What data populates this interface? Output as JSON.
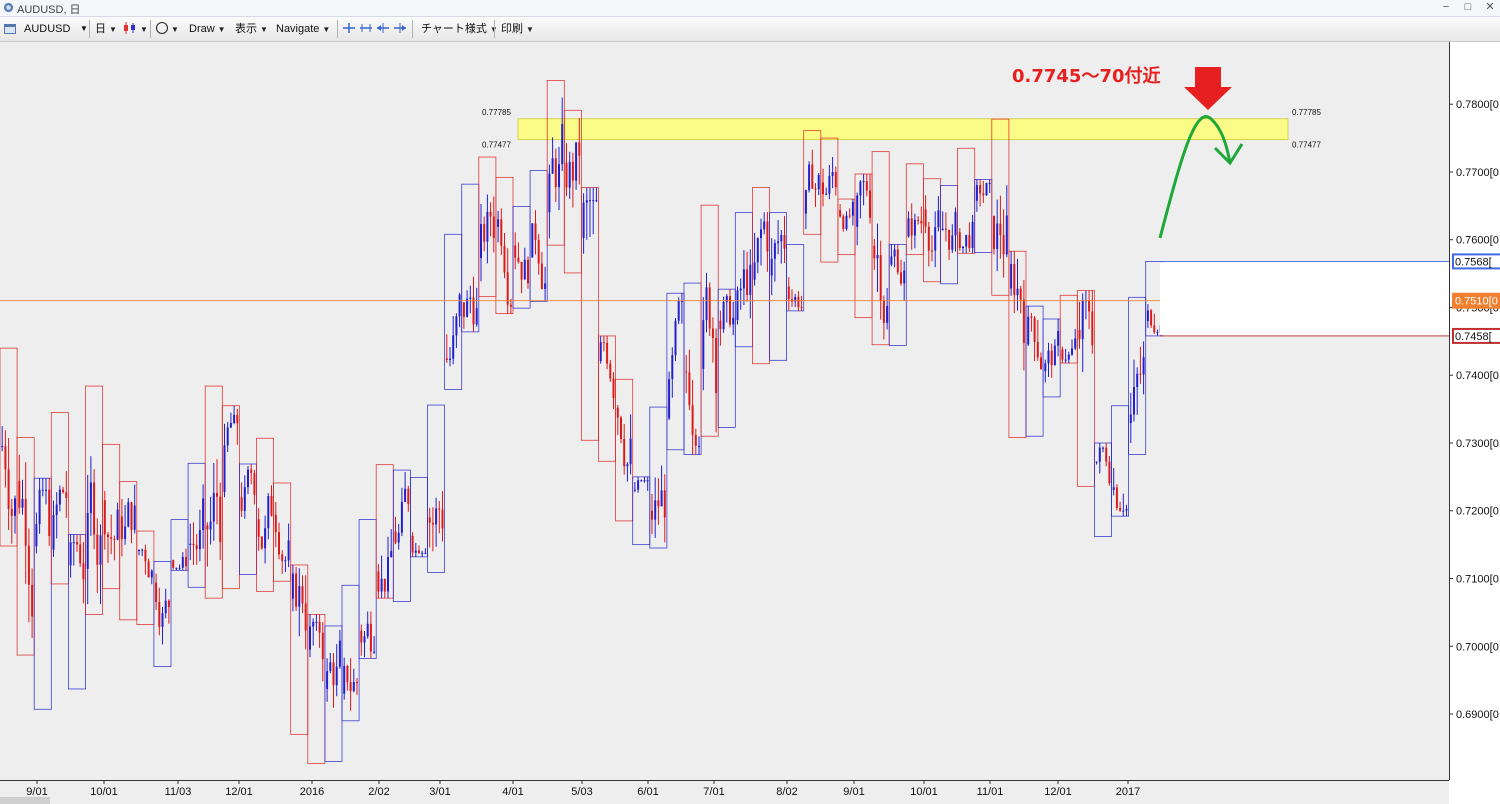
{
  "window": {
    "title": "AUDUSD, 日",
    "minimize": "−",
    "maximize": "□",
    "close": "✕"
  },
  "toolbar": {
    "symbol": "AUDUSD",
    "timeframe": "日",
    "draw_label": "Draw",
    "display_label": "表示",
    "navigate_label": "Navigate",
    "chart_style_label": "チャート様式",
    "print_label": "印刷"
  },
  "colors": {
    "bull": "#2020cc",
    "bear": "#dd1a1a",
    "zone": "#ffff66",
    "annotation": "#e62020",
    "arrow_curve": "#1ea838",
    "current_line": "#f08030",
    "high_line": "#4169e1",
    "low_line": "#c03030",
    "chart_bg": "#eeeeee"
  },
  "annotation": {
    "text": "0.7745〜70付近"
  },
  "zone": {
    "upper_label": "0.77785",
    "lower_label": "0.77477"
  },
  "price_labels": {
    "high": "0.7568[",
    "current": "0.7510[0",
    "low": "0.7458["
  },
  "chart_data": {
    "type": "candlestick",
    "symbol": "AUDUSD",
    "timeframe": "日",
    "y_axis": {
      "ylim": [
        0.681,
        0.788
      ],
      "ticks": [
        "0.7800[0",
        "0.7700[0",
        "0.7600[0",
        "0.7500[0",
        "0.7400[0",
        "0.7300[0",
        "0.7200[0",
        "0.7100[0",
        "0.7000[0",
        "0.6900[0"
      ]
    },
    "x_axis": {
      "ticks": [
        "9/01",
        "10/01",
        "11/03",
        "12/01",
        "2016",
        "2/02",
        "3/01",
        "4/01",
        "5/03",
        "6/01",
        "7/01",
        "8/02",
        "9/01",
        "10/01",
        "11/01",
        "12/01",
        "2017"
      ]
    },
    "horizontal_lines": {
      "high": 0.7568,
      "current": 0.751,
      "low": 0.7458
    },
    "zone": {
      "upper": 0.77785,
      "lower": 0.77477
    },
    "weekly_boxes": [
      [
        0.744,
        0.7148
      ],
      [
        0.7308,
        0.6987
      ],
      [
        0.7248,
        0.6907
      ],
      [
        0.7345,
        0.7092
      ],
      [
        0.7165,
        0.6937
      ],
      [
        0.7384,
        0.7047
      ],
      [
        0.7298,
        0.7085
      ],
      [
        0.7243,
        0.7039
      ],
      [
        0.717,
        0.7032
      ],
      [
        0.7125,
        0.697
      ],
      [
        0.7187,
        0.7112
      ],
      [
        0.727,
        0.7087
      ],
      [
        0.7384,
        0.7071
      ],
      [
        0.7355,
        0.7085
      ],
      [
        0.7269,
        0.7106
      ],
      [
        0.7307,
        0.7081
      ],
      [
        0.7241,
        0.7096
      ],
      [
        0.712,
        0.687
      ],
      [
        0.7047,
        0.6827
      ],
      [
        0.703,
        0.683
      ],
      [
        0.709,
        0.689
      ],
      [
        0.7187,
        0.6982
      ],
      [
        0.7268,
        0.7071
      ],
      [
        0.726,
        0.7066
      ],
      [
        0.7249,
        0.7132
      ],
      [
        0.7356,
        0.7109
      ],
      [
        0.7608,
        0.7379
      ],
      [
        0.7682,
        0.7464
      ],
      [
        0.7722,
        0.7516
      ],
      [
        0.7692,
        0.7491
      ],
      [
        0.7649,
        0.7499
      ],
      [
        0.7702,
        0.7509
      ],
      [
        0.7835,
        0.7592
      ],
      [
        0.7791,
        0.7551
      ],
      [
        0.7677,
        0.7304
      ],
      [
        0.7458,
        0.7273
      ],
      [
        0.7394,
        0.7185
      ],
      [
        0.725,
        0.715
      ],
      [
        0.7353,
        0.7145
      ],
      [
        0.7521,
        0.729
      ],
      [
        0.7536,
        0.7283
      ],
      [
        0.7651,
        0.731
      ],
      [
        0.7527,
        0.7323
      ],
      [
        0.764,
        0.7442
      ],
      [
        0.7677,
        0.7417
      ],
      [
        0.764,
        0.7422
      ],
      [
        0.7593,
        0.7495
      ],
      [
        0.7761,
        0.7608
      ],
      [
        0.775,
        0.7567
      ],
      [
        0.766,
        0.7578
      ],
      [
        0.7697,
        0.7485
      ],
      [
        0.773,
        0.7445
      ],
      [
        0.7593,
        0.7444
      ],
      [
        0.7712,
        0.7578
      ],
      [
        0.769,
        0.7538
      ],
      [
        0.768,
        0.7535
      ],
      [
        0.7735,
        0.758
      ],
      [
        0.7689,
        0.7581
      ],
      [
        0.7778,
        0.7518
      ],
      [
        0.7583,
        0.7308
      ],
      [
        0.7502,
        0.731
      ],
      [
        0.7483,
        0.7368
      ],
      [
        0.7518,
        0.7418
      ],
      [
        0.7525,
        0.7236
      ],
      [
        0.73,
        0.7162
      ],
      [
        0.7355,
        0.7192
      ],
      [
        0.7515,
        0.7283
      ],
      [
        0.7568,
        0.7458
      ]
    ]
  }
}
